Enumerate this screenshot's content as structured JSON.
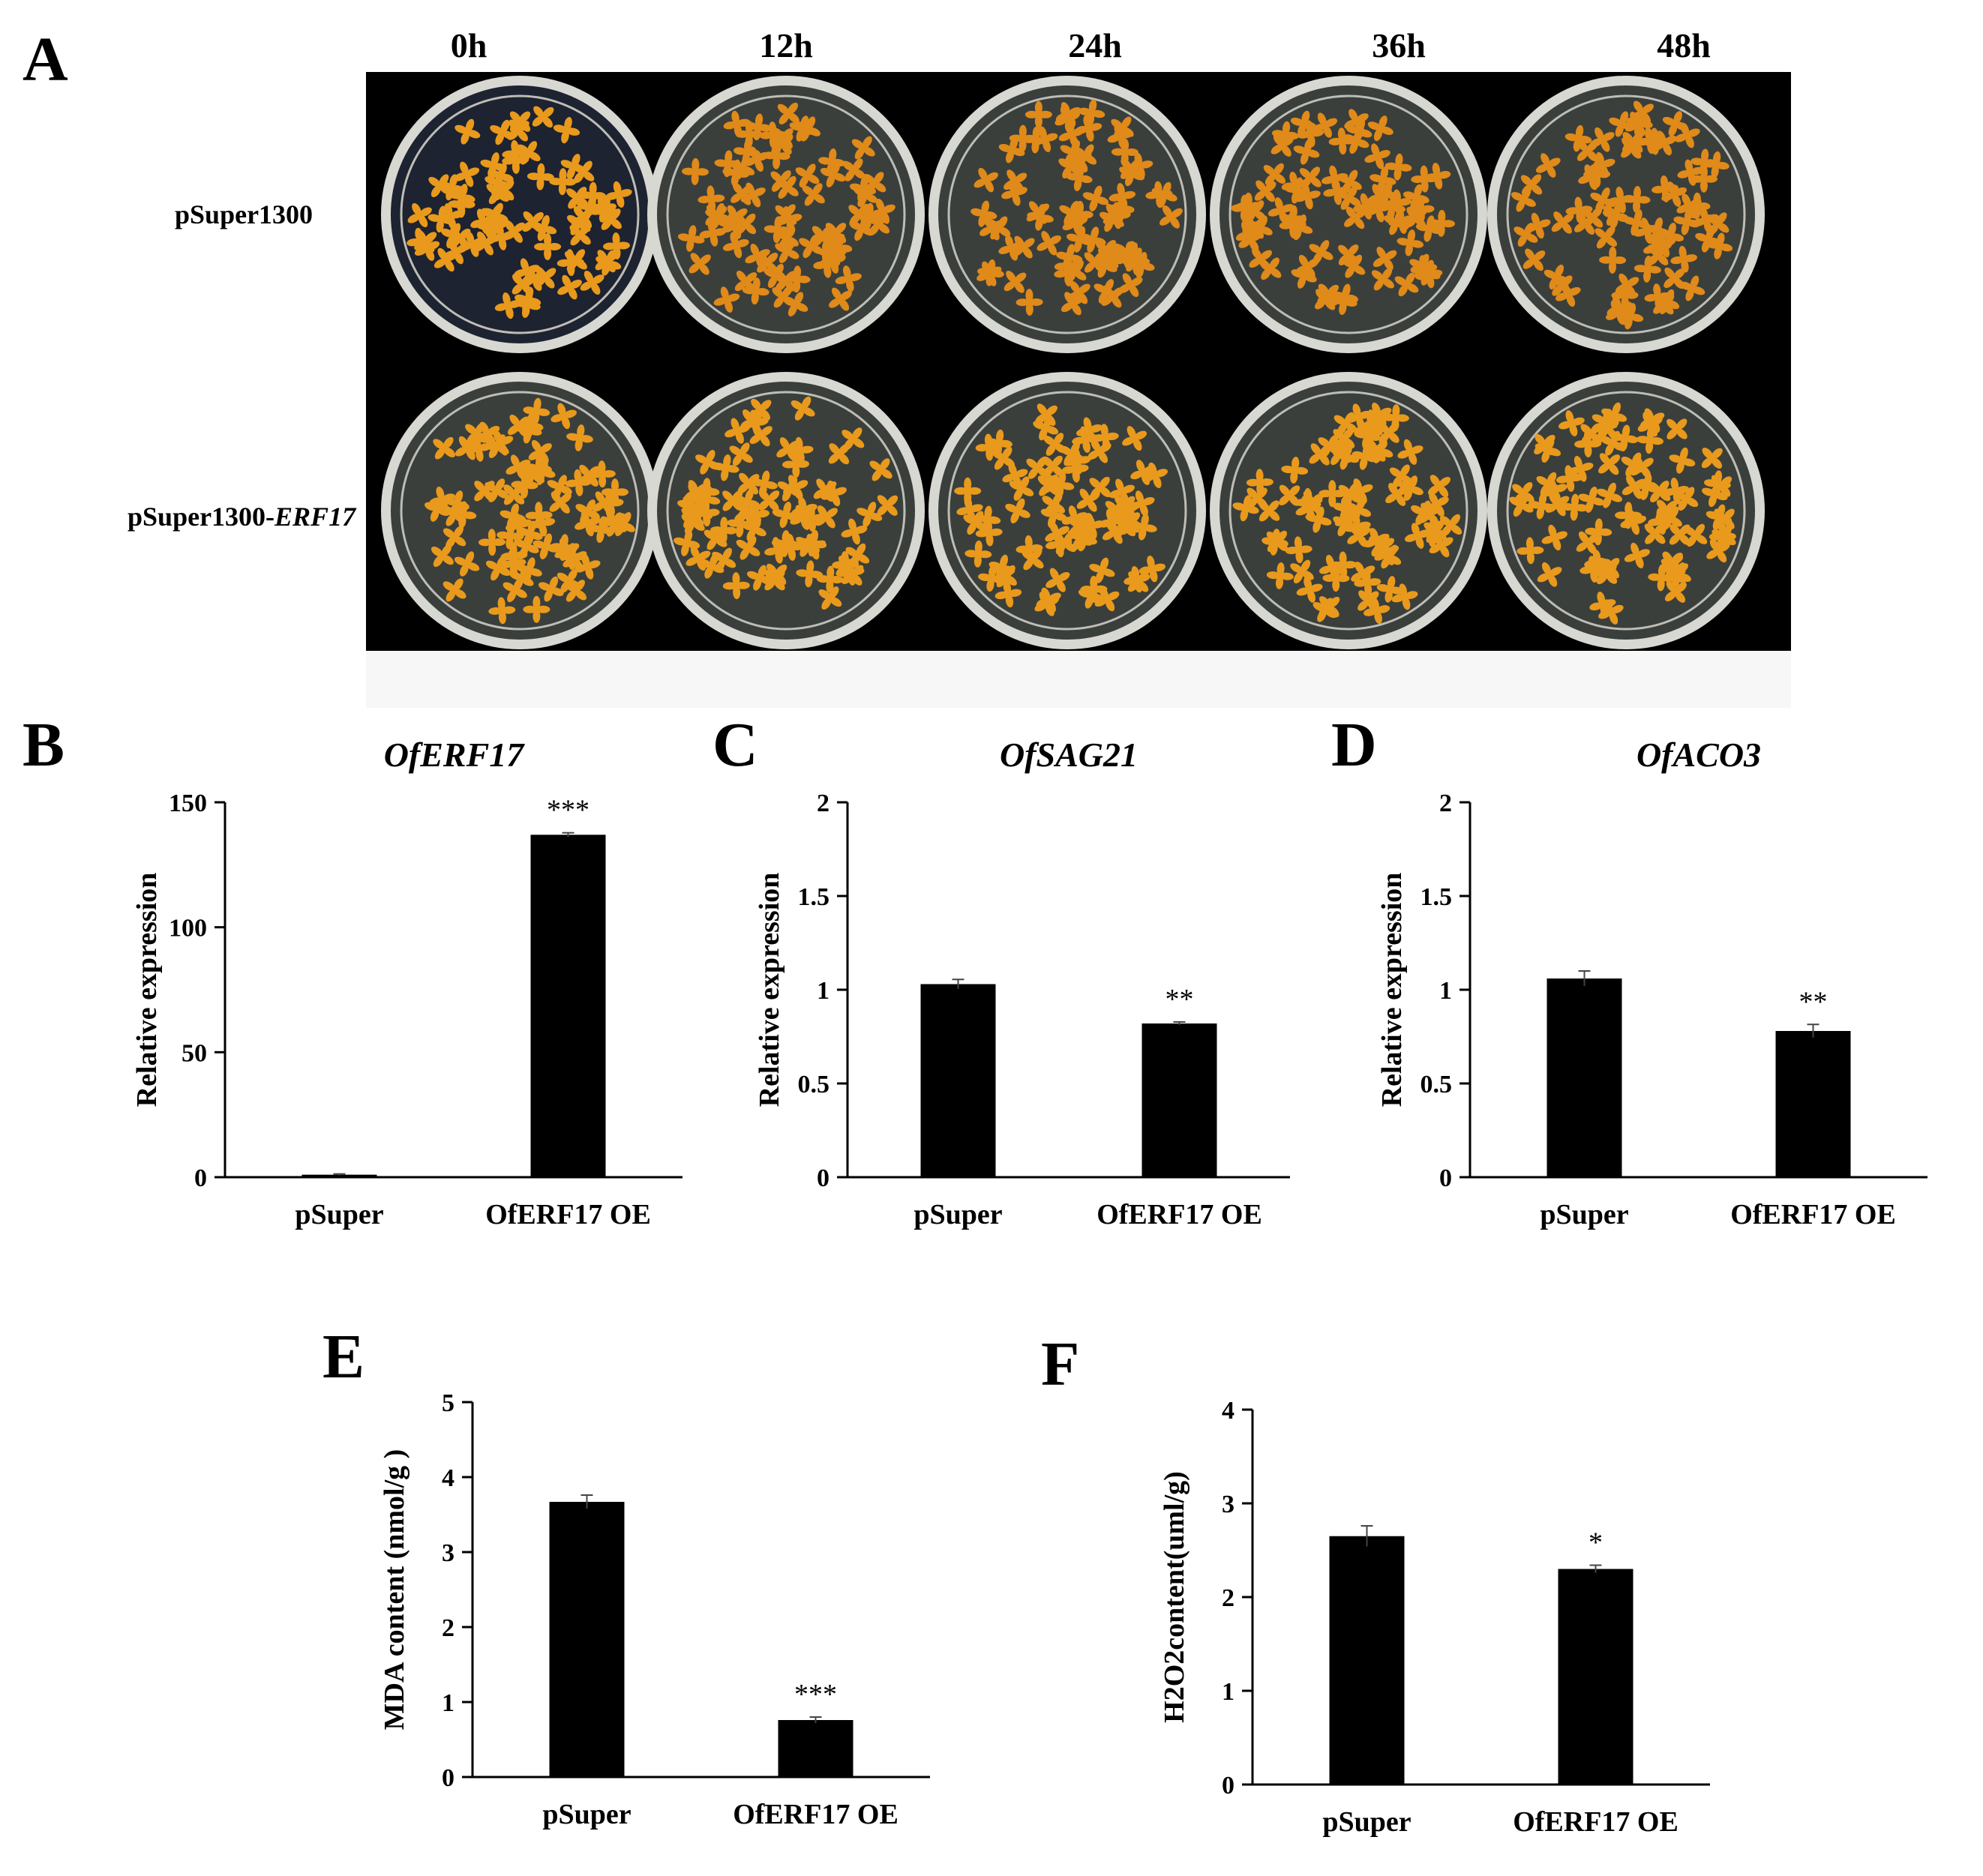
{
  "panels": {
    "A": "A",
    "B": "B",
    "C": "C",
    "D": "D",
    "E": "E",
    "F": "F"
  },
  "photo": {
    "time_points": [
      "0h",
      "12h",
      "24h",
      "36h",
      "48h"
    ],
    "rows": [
      {
        "label": "pSuper1300",
        "italic_suffix": ""
      },
      {
        "label": "pSuper1300-",
        "italic_suffix": "ERF17"
      }
    ],
    "colors": {
      "background": "#000000",
      "flower": "#e99a1c",
      "dish_rim": "#d8d8d2"
    }
  },
  "chart_data": [
    {
      "id": "B",
      "type": "bar",
      "title": "OfERF17",
      "title_italic": true,
      "xlabel": "",
      "ylabel": "Relative expression",
      "categories": [
        "pSuper",
        "OfERF17 OE"
      ],
      "values": [
        1,
        137
      ],
      "errors": [
        0.3,
        0.8
      ],
      "significance": [
        "",
        "***"
      ],
      "ylim": [
        0,
        150
      ],
      "yticks": [
        0,
        50,
        100,
        150
      ],
      "ytick_labels": [
        "0",
        "50",
        "100",
        "150"
      ],
      "grid": false,
      "bar_color": "#000000"
    },
    {
      "id": "C",
      "type": "bar",
      "title": "OfSAG21",
      "title_italic": true,
      "xlabel": "",
      "ylabel": "Relative expression",
      "categories": [
        "pSuper",
        "OfERF17 OE"
      ],
      "values": [
        1.03,
        0.82
      ],
      "errors": [
        0.025,
        0.008
      ],
      "significance": [
        "",
        "**"
      ],
      "ylim": [
        0,
        2
      ],
      "yticks": [
        0,
        0.5,
        1,
        1.5,
        2
      ],
      "ytick_labels": [
        "0",
        "0.5",
        "1",
        "1.5",
        "2"
      ],
      "grid": false,
      "bar_color": "#000000"
    },
    {
      "id": "D",
      "type": "bar",
      "title": "OfACO3",
      "title_italic": true,
      "xlabel": "",
      "ylabel": "Relative expression",
      "categories": [
        "pSuper",
        "OfERF17 OE"
      ],
      "values": [
        1.06,
        0.78
      ],
      "errors": [
        0.04,
        0.035
      ],
      "significance": [
        "",
        "**"
      ],
      "ylim": [
        0,
        2
      ],
      "yticks": [
        0,
        0.5,
        1,
        1.5,
        2
      ],
      "ytick_labels": [
        "0",
        "0.5",
        "1",
        "1.5",
        "2"
      ],
      "grid": false,
      "bar_color": "#000000"
    },
    {
      "id": "E",
      "type": "bar",
      "title": "",
      "title_italic": false,
      "xlabel": "",
      "ylabel": "MDA content (nmol/g )",
      "categories": [
        "pSuper",
        "OfERF17 OE"
      ],
      "values": [
        3.67,
        0.76
      ],
      "errors": [
        0.09,
        0.04
      ],
      "significance": [
        "",
        "***"
      ],
      "ylim": [
        0,
        5
      ],
      "yticks": [
        0,
        1,
        2,
        3,
        4,
        5
      ],
      "ytick_labels": [
        "0",
        "1",
        "2",
        "3",
        "4",
        "5"
      ],
      "grid": false,
      "bar_color": "#000000"
    },
    {
      "id": "F",
      "type": "bar",
      "title": "",
      "title_italic": false,
      "xlabel": "",
      "ylabel": "H2O2content(uml/g)",
      "categories": [
        "pSuper",
        "OfERF17 OE"
      ],
      "values": [
        2.65,
        2.3
      ],
      "errors": [
        0.11,
        0.04
      ],
      "significance": [
        "",
        "*"
      ],
      "ylim": [
        0,
        4
      ],
      "yticks": [
        0,
        1,
        2,
        3,
        4
      ],
      "ytick_labels": [
        "0",
        "1",
        "2",
        "3",
        "4"
      ],
      "grid": false,
      "bar_color": "#000000"
    }
  ]
}
